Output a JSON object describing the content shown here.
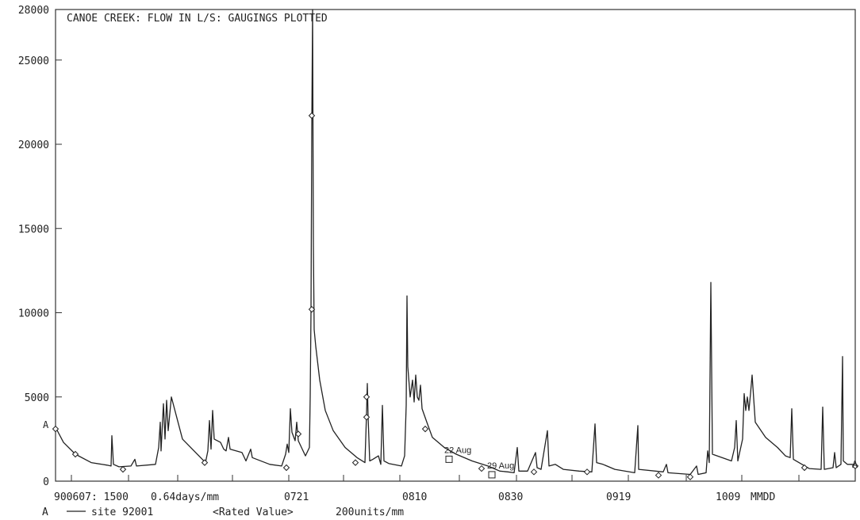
{
  "chart_data": {
    "type": "line",
    "title": "CANOE CREEK: FLOW IN L/S: GAUGINGS PLOTTED",
    "ylim": [
      0,
      28000
    ],
    "y_ticks": [
      0,
      5000,
      10000,
      15000,
      20000,
      25000,
      28000
    ],
    "y_tick_labels": [
      "0",
      "5000",
      "10000",
      "15000",
      "20000",
      "25000",
      "28000"
    ],
    "x_tick_labels": [
      "900607: 1500",
      "0.64days/mm",
      "0721",
      "0810",
      "0830",
      "0919",
      "1009",
      "MMDD"
    ],
    "series_marker": "A",
    "legend_text": "site 92001",
    "legend_extra": "<Rated Value>",
    "legend_units": "200units/mm",
    "series": [
      {
        "name": "site 92001",
        "color": "#222222",
        "values": [
          [
            0,
            3200
          ],
          [
            10,
            2300
          ],
          [
            25,
            1600
          ],
          [
            45,
            1100
          ],
          [
            65,
            950
          ],
          [
            70,
            900
          ],
          [
            71,
            2700
          ],
          [
            73,
            1000
          ],
          [
            80,
            850
          ],
          [
            95,
            900
          ],
          [
            100,
            1300
          ],
          [
            102,
            900
          ],
          [
            126,
            1000
          ],
          [
            130,
            2000
          ],
          [
            132,
            3500
          ],
          [
            133,
            1800
          ],
          [
            136,
            4600
          ],
          [
            138,
            2500
          ],
          [
            140,
            4800
          ],
          [
            142,
            3000
          ],
          [
            146,
            5000
          ],
          [
            160,
            2500
          ],
          [
            185,
            1300
          ],
          [
            189,
            1100
          ],
          [
            192,
            1800
          ],
          [
            194,
            3600
          ],
          [
            196,
            1900
          ],
          [
            198,
            4200
          ],
          [
            200,
            2500
          ],
          [
            208,
            2300
          ],
          [
            212,
            1900
          ],
          [
            215,
            1800
          ],
          [
            218,
            2600
          ],
          [
            220,
            1900
          ],
          [
            235,
            1700
          ],
          [
            240,
            1200
          ],
          [
            246,
            1900
          ],
          [
            248,
            1400
          ],
          [
            270,
            1000
          ],
          [
            285,
            900
          ],
          [
            290,
            1600
          ],
          [
            292,
            2200
          ],
          [
            294,
            1700
          ],
          [
            296,
            4300
          ],
          [
            298,
            2900
          ],
          [
            302,
            2400
          ],
          [
            304,
            3500
          ],
          [
            306,
            2400
          ],
          [
            315,
            1500
          ],
          [
            320,
            2000
          ],
          [
            321,
            5000
          ],
          [
            322,
            10000
          ],
          [
            323,
            21000
          ],
          [
            324,
            28000
          ],
          [
            325,
            14000
          ],
          [
            326,
            9000
          ],
          [
            328,
            8000
          ],
          [
            333,
            6000
          ],
          [
            340,
            4200
          ],
          [
            350,
            3000
          ],
          [
            365,
            2000
          ],
          [
            380,
            1400
          ],
          [
            390,
            1100
          ],
          [
            392,
            4000
          ],
          [
            393,
            5800
          ],
          [
            394,
            3800
          ],
          [
            395,
            2500
          ],
          [
            396,
            1200
          ],
          [
            400,
            1300
          ],
          [
            407,
            1500
          ],
          [
            410,
            1000
          ],
          [
            412,
            4500
          ],
          [
            414,
            1200
          ],
          [
            420,
            1050
          ],
          [
            436,
            900
          ],
          [
            440,
            1500
          ],
          [
            442,
            4500
          ],
          [
            443,
            11000
          ],
          [
            444,
            6800
          ],
          [
            447,
            5000
          ],
          [
            450,
            6000
          ],
          [
            452,
            4700
          ],
          [
            454,
            6300
          ],
          [
            456,
            5000
          ],
          [
            458,
            4800
          ],
          [
            460,
            5700
          ],
          [
            462,
            4300
          ],
          [
            468,
            3500
          ],
          [
            475,
            2600
          ],
          [
            490,
            2000
          ],
          [
            505,
            1600
          ],
          [
            525,
            1200
          ],
          [
            545,
            900
          ],
          [
            555,
            700
          ],
          [
            560,
            600
          ],
          [
            570,
            550
          ],
          [
            578,
            500
          ],
          [
            582,
            2000
          ],
          [
            584,
            600
          ],
          [
            595,
            600
          ],
          [
            605,
            1700
          ],
          [
            607,
            800
          ],
          [
            612,
            700
          ],
          [
            620,
            3000
          ],
          [
            622,
            900
          ],
          [
            630,
            1000
          ],
          [
            640,
            700
          ],
          [
            660,
            600
          ],
          [
            676,
            550
          ],
          [
            680,
            3400
          ],
          [
            682,
            1100
          ],
          [
            690,
            1000
          ],
          [
            705,
            700
          ],
          [
            730,
            500
          ],
          [
            734,
            3300
          ],
          [
            735,
            700
          ],
          [
            766,
            550
          ],
          [
            770,
            1000
          ],
          [
            772,
            500
          ],
          [
            800,
            400
          ],
          [
            808,
            900
          ],
          [
            810,
            400
          ],
          [
            820,
            500
          ],
          [
            822,
            1800
          ],
          [
            824,
            1100
          ],
          [
            826,
            11800
          ],
          [
            828,
            1600
          ],
          [
            852,
            1200
          ],
          [
            856,
            2000
          ],
          [
            858,
            3600
          ],
          [
            860,
            1200
          ],
          [
            866,
            2500
          ],
          [
            868,
            5200
          ],
          [
            870,
            4200
          ],
          [
            872,
            5000
          ],
          [
            874,
            4200
          ],
          [
            876,
            5200
          ],
          [
            878,
            6300
          ],
          [
            882,
            3500
          ],
          [
            895,
            2600
          ],
          [
            910,
            2000
          ],
          [
            920,
            1500
          ],
          [
            926,
            1400
          ],
          [
            928,
            4300
          ],
          [
            930,
            1300
          ],
          [
            950,
            750
          ],
          [
            965,
            700
          ],
          [
            967,
            4400
          ],
          [
            969,
            700
          ],
          [
            980,
            800
          ],
          [
            982,
            1700
          ],
          [
            984,
            800
          ],
          [
            990,
            1000
          ],
          [
            992,
            7400
          ],
          [
            993,
            1200
          ],
          [
            998,
            1000
          ],
          [
            1008,
            1000
          ]
        ],
        "markers": [
          [
            0,
            3100
          ],
          [
            25,
            1600
          ],
          [
            85,
            700
          ],
          [
            188,
            1100
          ],
          [
            306,
            2800
          ],
          [
            291,
            800
          ],
          [
            323,
            21700
          ],
          [
            323,
            10200
          ],
          [
            378,
            1100
          ],
          [
            392,
            5000
          ],
          [
            392,
            3800
          ],
          [
            466,
            3100
          ],
          [
            537,
            750
          ],
          [
            603,
            550
          ],
          [
            670,
            550
          ],
          [
            760,
            350
          ],
          [
            800,
            250
          ],
          [
            944,
            800
          ],
          [
            1008,
            900
          ]
        ]
      }
    ],
    "annotations": [
      {
        "label": "22 Aug",
        "x": 496,
        "y": 1300
      },
      {
        "label": "29 Aug",
        "x": 550,
        "y": 380
      }
    ]
  }
}
